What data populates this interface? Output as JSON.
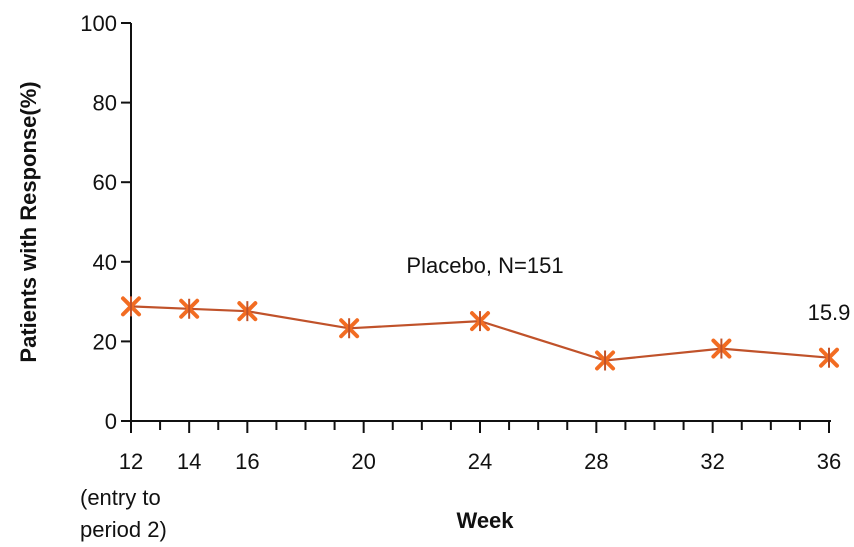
{
  "chart_data": {
    "type": "line",
    "title": "",
    "xlabel": "Week",
    "ylabel": "Patients with Response(%)",
    "x_tick_labels": [
      "12",
      "14",
      "16",
      "20",
      "24",
      "28",
      "32",
      "36"
    ],
    "x_tick_sublabel": [
      "(entry to",
      "period 2)"
    ],
    "y_ticks": [
      "0",
      "20",
      "40",
      "60",
      "80",
      "100"
    ],
    "xlim": [
      12,
      36
    ],
    "ylim": [
      0,
      100
    ],
    "grid": false,
    "series": [
      {
        "name": "Placebo, N=151",
        "color": "#c0522a",
        "marker_color": "#f26c22",
        "x": [
          12,
          14,
          16,
          19.5,
          24,
          28.3,
          32.3,
          36
        ],
        "y": [
          28.8,
          28.2,
          27.6,
          23.3,
          25.1,
          15.2,
          18.2,
          15.9
        ]
      }
    ],
    "annotations": [
      {
        "text": "Placebo, N=151"
      },
      {
        "text": "15.9"
      }
    ]
  }
}
